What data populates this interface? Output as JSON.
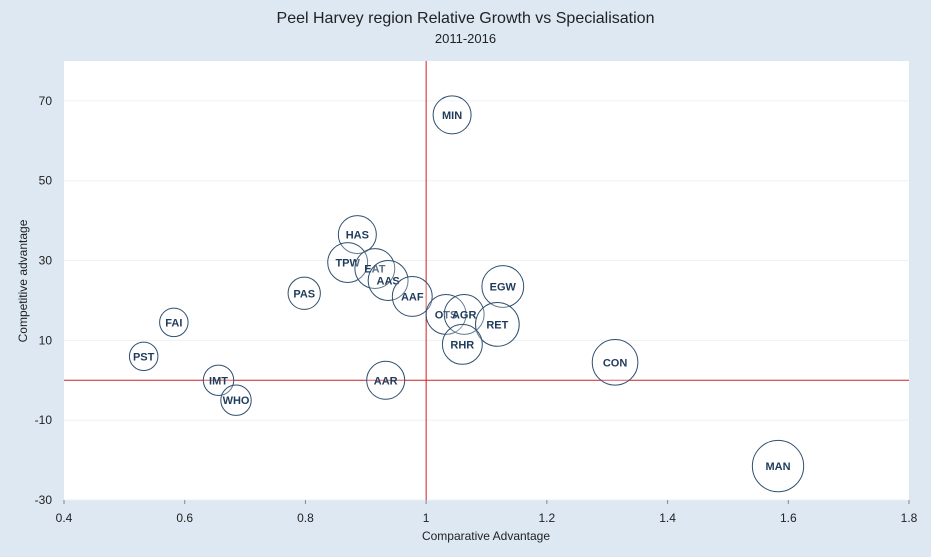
{
  "chart_data": {
    "type": "scatter",
    "title": "Peel Harvey region Relative Growth vs Specialisation",
    "subtitle": "2011-2016",
    "xlabel": "Comparative Advantage",
    "ylabel": "Competitive advantage",
    "xlim": [
      0.4,
      1.8
    ],
    "ylim": [
      -30,
      80
    ],
    "x_ticks": [
      "0.4",
      "0.6",
      "0.8",
      "1",
      "1.2",
      "1.4",
      "1.6",
      "1.8"
    ],
    "y_ticks": [
      "70",
      "50",
      "30",
      "10",
      "-10",
      "-30"
    ],
    "reference_lines": {
      "x": 1.0,
      "y": 0
    },
    "reference_line_color": "#cc2222",
    "bubble_stroke_color": "#2f4f6f",
    "label_color": "#1f3b5c",
    "points": [
      {
        "label": "MIN",
        "x": 1.043,
        "y": 66.5,
        "size": 1.0
      },
      {
        "label": "HAS",
        "x": 0.886,
        "y": 36.5,
        "size": 1.0
      },
      {
        "label": "TPW",
        "x": 0.87,
        "y": 29.5,
        "size": 1.05
      },
      {
        "label": "EAT",
        "x": 0.915,
        "y": 28.0,
        "size": 1.05
      },
      {
        "label": "AAS",
        "x": 0.937,
        "y": 25.0,
        "size": 1.05
      },
      {
        "label": "AAF",
        "x": 0.977,
        "y": 21.0,
        "size": 1.05
      },
      {
        "label": "PAS",
        "x": 0.798,
        "y": 21.8,
        "size": 0.85
      },
      {
        "label": "EGW",
        "x": 1.127,
        "y": 23.5,
        "size": 1.1
      },
      {
        "label": "OTS",
        "x": 1.033,
        "y": 16.5,
        "size": 1.05
      },
      {
        "label": "AGR",
        "x": 1.063,
        "y": 16.5,
        "size": 1.05
      },
      {
        "label": "RET",
        "x": 1.118,
        "y": 14.0,
        "size": 1.15
      },
      {
        "label": "RHR",
        "x": 1.06,
        "y": 9.0,
        "size": 1.05
      },
      {
        "label": "FAI",
        "x": 0.582,
        "y": 14.5,
        "size": 0.75
      },
      {
        "label": "PST",
        "x": 0.532,
        "y": 6.0,
        "size": 0.75
      },
      {
        "label": "IMT",
        "x": 0.656,
        "y": 0.0,
        "size": 0.8
      },
      {
        "label": "WHO",
        "x": 0.685,
        "y": -5.0,
        "size": 0.8
      },
      {
        "label": "AAR",
        "x": 0.933,
        "y": 0.0,
        "size": 1.0
      },
      {
        "label": "CON",
        "x": 1.313,
        "y": 4.5,
        "size": 1.2
      },
      {
        "label": "MAN",
        "x": 1.583,
        "y": -21.5,
        "size": 1.35
      }
    ]
  }
}
